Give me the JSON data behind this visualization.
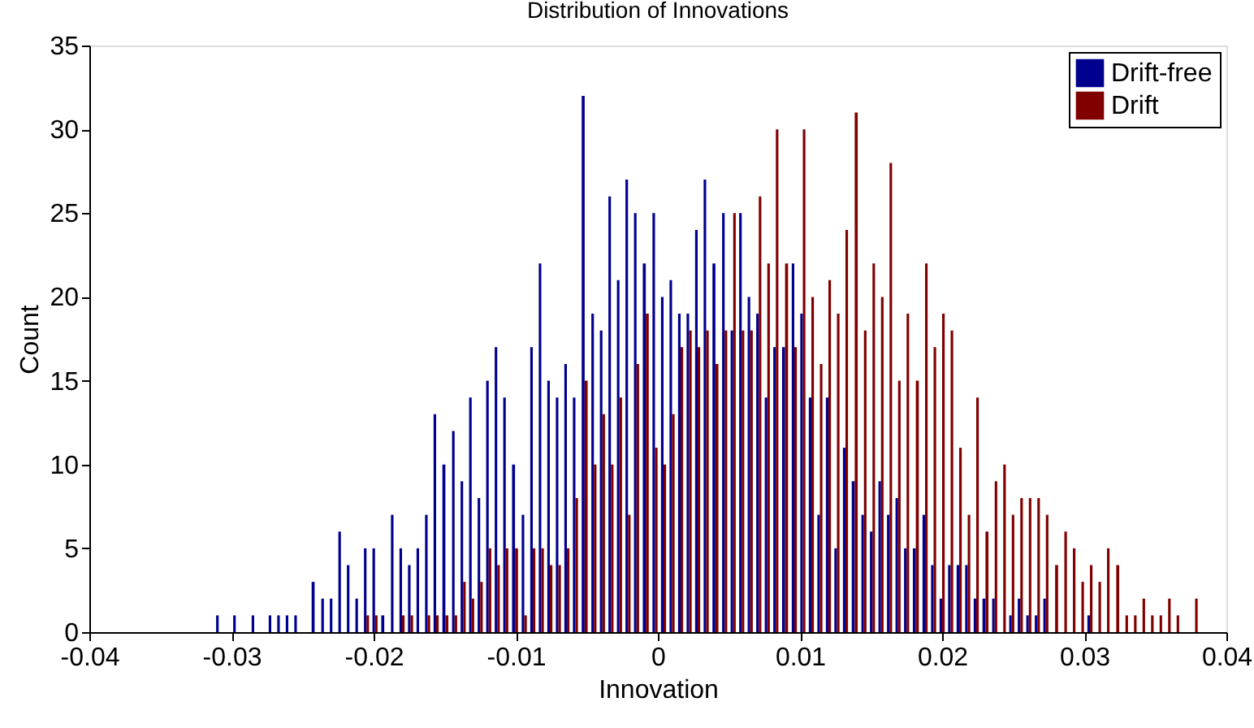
{
  "chart_data": {
    "type": "histogram",
    "title": "Distribution of Innovations",
    "xlabel": "Innovation",
    "ylabel": "Count",
    "bins": [
      -0.0312,
      -0.0306,
      -0.03,
      -0.0294,
      -0.0287,
      -0.0281,
      -0.0275,
      -0.0269,
      -0.0263,
      -0.0257,
      -0.0251,
      -0.0245,
      -0.0238,
      -0.0232,
      -0.0226,
      -0.022,
      -0.0214,
      -0.0208,
      -0.0202,
      -0.0196,
      -0.0189,
      -0.0183,
      -0.0177,
      -0.0171,
      -0.0165,
      -0.0159,
      -0.0153,
      -0.0146,
      -0.014,
      -0.0134,
      -0.0128,
      -0.0122,
      -0.0116,
      -0.011,
      -0.0104,
      -0.0097,
      -0.0091,
      -0.0085,
      -0.0079,
      -0.0073,
      -0.0067,
      -0.0061,
      -0.0055,
      -0.0048,
      -0.0042,
      -0.0036,
      -0.003,
      -0.0024,
      -0.0018,
      -0.0012,
      -0.0005,
      0.0001,
      0.0007,
      0.0013,
      0.0019,
      0.0025,
      0.0031,
      0.0037,
      0.0044,
      0.005,
      0.0056,
      0.0062,
      0.0068,
      0.0074,
      0.008,
      0.0086,
      0.0093,
      0.0099,
      0.0105,
      0.0111,
      0.0117,
      0.0123,
      0.0129,
      0.0135,
      0.0142,
      0.0148,
      0.0154,
      0.016,
      0.0166,
      0.0172,
      0.0178,
      0.0185,
      0.0191,
      0.0197,
      0.0203,
      0.0209,
      0.0215,
      0.0221,
      0.0227,
      0.0234,
      0.024,
      0.0246,
      0.0252,
      0.0258,
      0.0264,
      0.027,
      0.0276,
      0.0283,
      0.0289,
      0.0295,
      0.0301,
      0.0307,
      0.0313,
      0.0319,
      0.0326,
      0.0332,
      0.0338,
      0.0344,
      0.035,
      0.0356,
      0.0362,
      0.0368,
      0.0375,
      0.0381
    ],
    "series": [
      {
        "name": "Drift-free",
        "color": "#00008f",
        "values": [
          1,
          0,
          1,
          0,
          1,
          0,
          1,
          1,
          1,
          1,
          0,
          3,
          2,
          2,
          6,
          4,
          2,
          5,
          5,
          1,
          7,
          5,
          4,
          5,
          7,
          13,
          10,
          12,
          9,
          14,
          8,
          15,
          17,
          14,
          10,
          7,
          17,
          22,
          15,
          14,
          16,
          14,
          32,
          19,
          18,
          26,
          21,
          27,
          25,
          22,
          25,
          20,
          21,
          19,
          19,
          24,
          27,
          22,
          25,
          18,
          25,
          20,
          19,
          14,
          17,
          17,
          22,
          19,
          14,
          7,
          14,
          5,
          11,
          9,
          7,
          6,
          9,
          7,
          8,
          5,
          5,
          7,
          4,
          2,
          4,
          4,
          4,
          2,
          2,
          2,
          0,
          1,
          2,
          1,
          1,
          2,
          0,
          0,
          0,
          0,
          1,
          0,
          0,
          0,
          0,
          0,
          0,
          0,
          0,
          0,
          0,
          0,
          0
        ]
      },
      {
        "name": "Drift",
        "color": "#800000",
        "values": [
          0,
          0,
          0,
          0,
          0,
          0,
          0,
          0,
          0,
          0,
          0,
          0,
          0,
          0,
          0,
          0,
          0,
          1,
          1,
          0,
          0,
          1,
          1,
          0,
          1,
          1,
          1,
          1,
          3,
          2,
          3,
          5,
          4,
          5,
          5,
          1,
          5,
          5,
          4,
          4,
          5,
          8,
          15,
          10,
          13,
          10,
          14,
          7,
          16,
          19,
          11,
          10,
          13,
          17,
          18,
          17,
          18,
          16,
          18,
          25,
          18,
          18,
          26,
          22,
          30,
          22,
          17,
          30,
          20,
          16,
          21,
          19,
          24,
          31,
          18,
          22,
          20,
          28,
          15,
          19,
          15,
          22,
          17,
          19,
          18,
          11,
          7,
          14,
          6,
          9,
          10,
          7,
          8,
          8,
          8,
          7,
          4,
          6,
          5,
          3,
          4,
          3,
          5,
          4,
          1,
          1,
          2,
          1,
          1,
          2,
          1,
          0,
          2
        ]
      }
    ],
    "xlim": [
      -0.04,
      0.04
    ],
    "xticks": [
      -0.04,
      -0.03,
      -0.02,
      -0.01,
      0,
      0.01,
      0.02,
      0.03,
      0.04
    ],
    "ylim": [
      0,
      35
    ],
    "yticks": [
      0,
      5,
      10,
      15,
      20,
      25,
      30,
      35
    ],
    "grid": false,
    "legend": "top right"
  }
}
